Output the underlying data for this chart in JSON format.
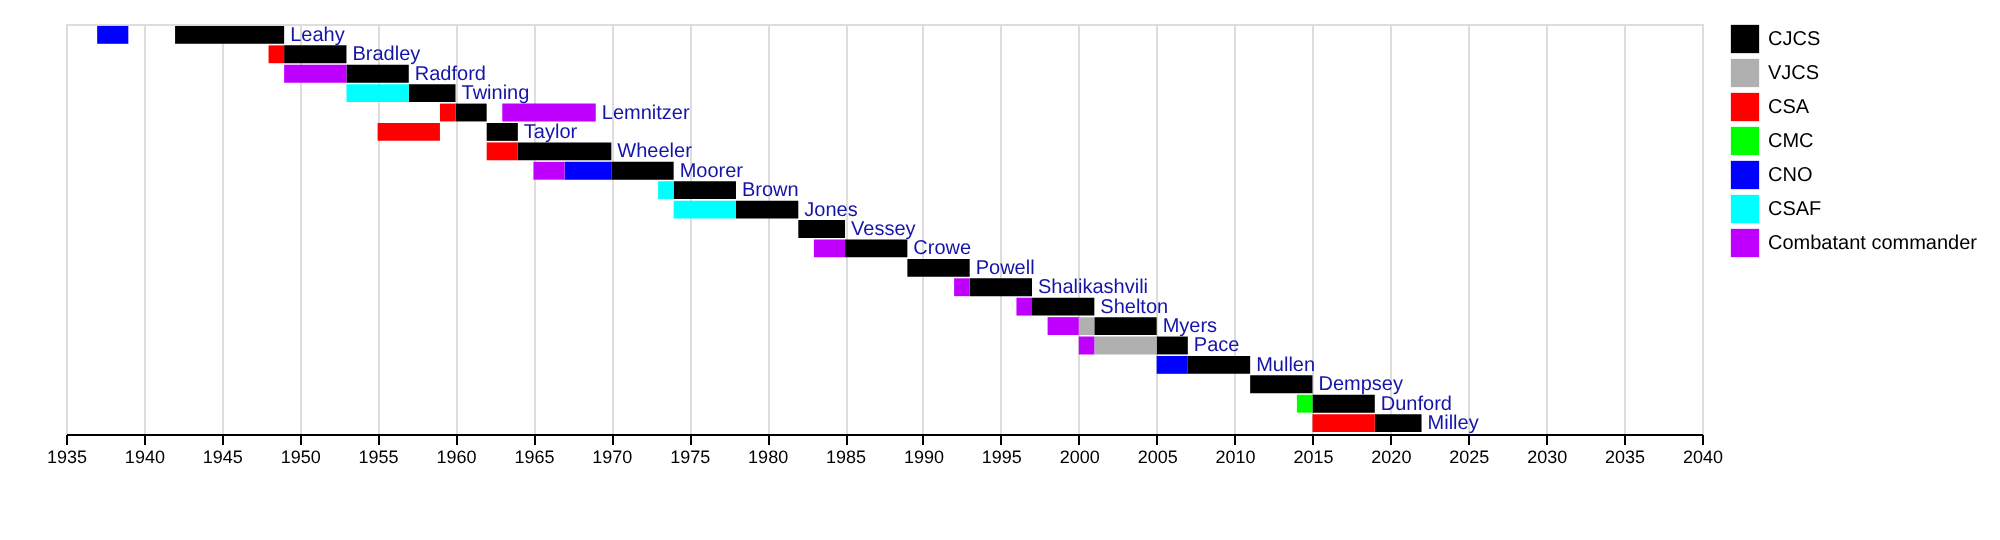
{
  "chart_data": {
    "type": "bar",
    "orientation": "horizontal",
    "categories": [
      "Leahy",
      "Bradley",
      "Radford",
      "Twining",
      "Lemnitzer",
      "Taylor",
      "Wheeler",
      "Moorer",
      "Brown",
      "Jones",
      "Vessey",
      "Crowe",
      "Powell",
      "Shalikashvili",
      "Shelton",
      "Myers",
      "Pace",
      "Mullen",
      "Dempsey",
      "Dunford",
      "Milley"
    ],
    "series": [
      {
        "name": "CJCS",
        "color": "#000000",
        "base": [
          1942,
          1949,
          1953,
          1957,
          1960,
          1962,
          1964,
          1970,
          1974,
          1978,
          1982,
          1985,
          1989,
          1993,
          1997,
          2001,
          2005,
          2007,
          2011,
          2015,
          2019
        ],
        "values": [
          7,
          4,
          4,
          3,
          2,
          2,
          6,
          4,
          4,
          4,
          3,
          4,
          4,
          4,
          4,
          4,
          2,
          4,
          4,
          4,
          3
        ]
      },
      {
        "name": "VJCS",
        "color": "#b0b0b0",
        "base": [
          null,
          null,
          null,
          null,
          null,
          null,
          null,
          null,
          null,
          null,
          null,
          null,
          null,
          null,
          null,
          2000,
          2001,
          null,
          null,
          null,
          null
        ],
        "values": [
          null,
          null,
          null,
          null,
          null,
          null,
          null,
          null,
          null,
          null,
          null,
          null,
          null,
          null,
          null,
          1,
          4,
          null,
          null,
          null,
          null
        ]
      },
      {
        "name": "CSA",
        "color": "#ff0000",
        "base": [
          null,
          1948,
          null,
          null,
          1959,
          1955,
          1962,
          null,
          null,
          null,
          null,
          null,
          null,
          null,
          null,
          null,
          null,
          null,
          null,
          null,
          2015
        ],
        "values": [
          null,
          1,
          null,
          null,
          1,
          4,
          2,
          null,
          null,
          null,
          null,
          null,
          null,
          null,
          null,
          null,
          null,
          null,
          null,
          null,
          4
        ]
      },
      {
        "name": "CMC",
        "color": "#00ff00",
        "base": [
          null,
          null,
          null,
          null,
          null,
          null,
          null,
          null,
          null,
          null,
          null,
          null,
          null,
          null,
          null,
          null,
          null,
          null,
          null,
          2014,
          null
        ],
        "values": [
          null,
          null,
          null,
          null,
          null,
          null,
          null,
          null,
          null,
          null,
          null,
          null,
          null,
          null,
          null,
          null,
          null,
          null,
          null,
          1,
          null
        ]
      },
      {
        "name": "CNO",
        "color": "#0000ff",
        "base": [
          1937,
          null,
          null,
          null,
          null,
          null,
          null,
          1967,
          null,
          null,
          null,
          null,
          null,
          null,
          null,
          null,
          null,
          2005,
          null,
          null,
          null
        ],
        "values": [
          2,
          null,
          null,
          null,
          null,
          null,
          null,
          3,
          null,
          null,
          null,
          null,
          null,
          null,
          null,
          null,
          null,
          2,
          null,
          null,
          null
        ]
      },
      {
        "name": "CSAF",
        "color": "#00ffff",
        "base": [
          null,
          null,
          null,
          1953,
          null,
          null,
          null,
          null,
          1973,
          1974,
          null,
          null,
          null,
          null,
          null,
          null,
          null,
          null,
          null,
          null,
          null
        ],
        "values": [
          null,
          null,
          null,
          4,
          null,
          null,
          null,
          null,
          1,
          4,
          null,
          null,
          null,
          null,
          null,
          null,
          null,
          null,
          null,
          null,
          null
        ]
      },
      {
        "name": "Combatant commander",
        "color": "#c000ff",
        "base": [
          null,
          null,
          1949,
          null,
          1963,
          null,
          null,
          1965,
          null,
          null,
          null,
          1983,
          null,
          1992,
          1996,
          1998,
          2000,
          null,
          null,
          null,
          null
        ],
        "values": [
          null,
          null,
          4,
          null,
          6,
          null,
          null,
          2,
          null,
          null,
          null,
          2,
          null,
          1,
          1,
          2,
          1,
          null,
          null,
          null,
          null
        ]
      }
    ],
    "xlim": [
      1935,
      2040
    ],
    "xticks": [
      1935,
      1940,
      1945,
      1950,
      1955,
      1960,
      1965,
      1970,
      1975,
      1980,
      1985,
      1990,
      1995,
      2000,
      2005,
      2010,
      2015,
      2020,
      2025,
      2030,
      2035,
      2040
    ],
    "grid": "x",
    "legend": "top right"
  }
}
